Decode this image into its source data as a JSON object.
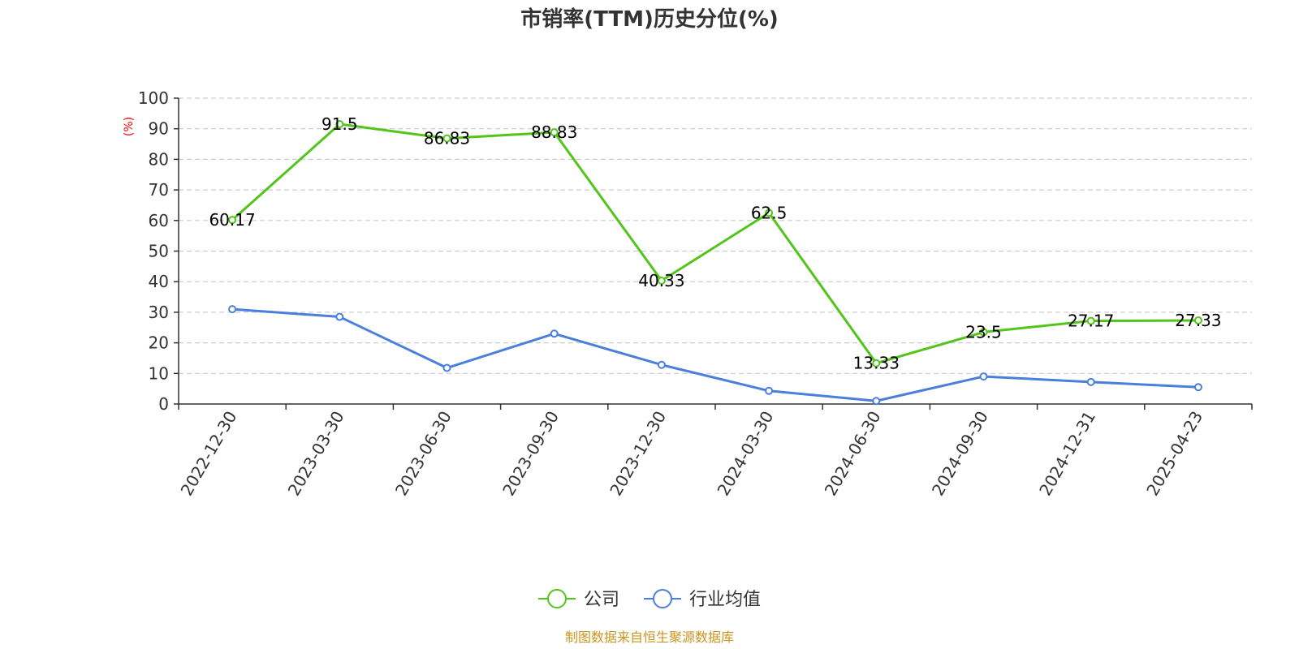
{
  "chart_data": {
    "type": "line",
    "title": "市销率(TTM)历史分位(%)",
    "ylabel": "(%)",
    "xlabel": "",
    "ylim": [
      0,
      100
    ],
    "yticks": [
      0,
      10,
      20,
      30,
      40,
      50,
      60,
      70,
      80,
      90,
      100
    ],
    "grid": true,
    "legend_position": "bottom-center",
    "categories": [
      "2022-12-30",
      "2023-03-30",
      "2023-06-30",
      "2023-09-30",
      "2023-12-30",
      "2024-03-30",
      "2024-06-30",
      "2024-09-30",
      "2024-12-31",
      "2025-04-23"
    ],
    "series": [
      {
        "name": "公司",
        "color": "#52c41a",
        "values": [
          60.17,
          91.5,
          86.83,
          88.83,
          40.33,
          62.5,
          13.33,
          23.5,
          27.17,
          27.33
        ],
        "labels": [
          "60.17",
          "91.5",
          "86.83",
          "88.83",
          "40.33",
          "62.5",
          "13.33",
          "23.5",
          "27.17",
          "27.33"
        ]
      },
      {
        "name": "行业均值",
        "color": "#4a7fdc",
        "values": [
          31,
          28.5,
          11.8,
          23,
          12.8,
          4.3,
          1,
          9,
          7.2,
          5.5
        ]
      }
    ],
    "source": "制图数据来自恒生聚源数据库"
  }
}
